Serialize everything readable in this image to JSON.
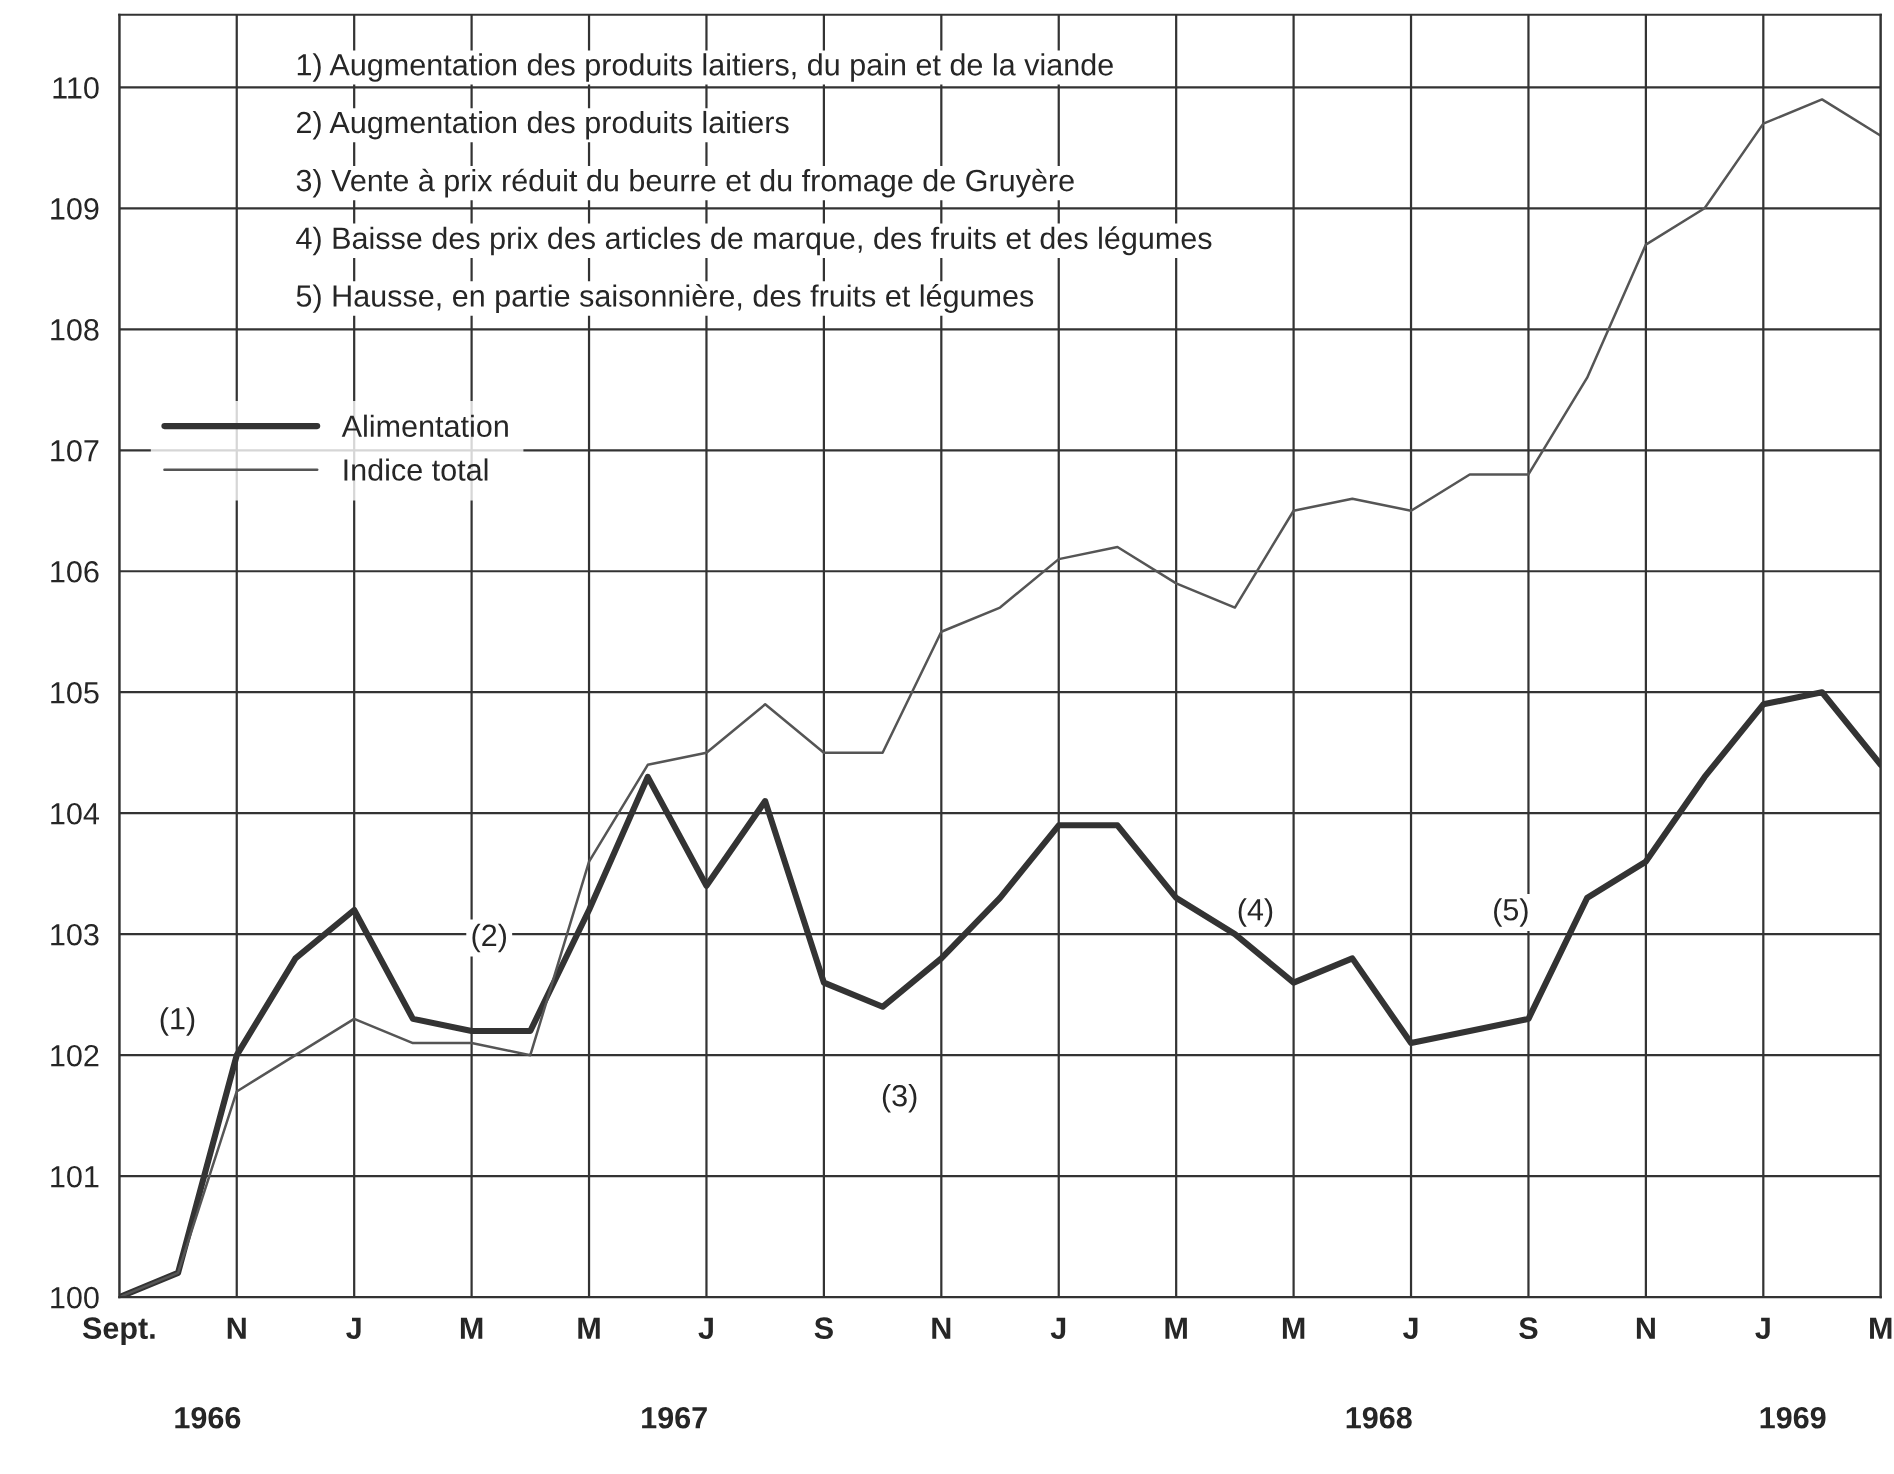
{
  "chart_data": {
    "type": "line",
    "categories": [
      "Sept.",
      null,
      "N",
      null,
      "J",
      null,
      "M",
      null,
      "M",
      null,
      "J",
      null,
      "S",
      null,
      "N",
      null,
      "J",
      null,
      "M",
      null,
      "M",
      null,
      "J",
      null,
      "S",
      null,
      "N",
      null,
      "J",
      null,
      "M"
    ],
    "series": [
      {
        "name": "Alimentation",
        "color": "#333333",
        "values": [
          100.0,
          100.2,
          102.0,
          102.8,
          103.2,
          102.3,
          102.2,
          102.2,
          103.2,
          104.3,
          103.4,
          104.1,
          102.6,
          102.4,
          102.8,
          103.3,
          103.9,
          103.9,
          103.3,
          103.0,
          102.6,
          102.8,
          102.1,
          102.2,
          102.3,
          103.3,
          103.6,
          104.3,
          104.9,
          105.0,
          104.4
        ]
      },
      {
        "name": "Indice total",
        "color": "#555555",
        "values": [
          100.0,
          100.2,
          101.7,
          102.0,
          102.3,
          102.1,
          102.1,
          102.0,
          103.6,
          104.4,
          104.5,
          104.9,
          104.5,
          104.5,
          105.5,
          105.7,
          106.1,
          106.2,
          105.9,
          105.7,
          106.5,
          106.6,
          106.5,
          106.8,
          106.8,
          107.6,
          108.7,
          109.0,
          109.7,
          109.9,
          109.6
        ]
      }
    ],
    "ylim": [
      100,
      110.6
    ],
    "yticks": [
      100,
      101,
      102,
      103,
      104,
      105,
      106,
      107,
      108,
      109,
      110
    ],
    "grid": true,
    "legend": "left",
    "annotations": [
      "1) Augmentation des produits laitiers, du pain et de la viande",
      "2) Augmentation des produits laitiers",
      "3) Vente à prix réduit du beurre et du fromage de Gruyère",
      "4) Baisse des prix des articles de marque, des fruits et des légumes",
      "5) Hausse, en partie saisonnière, des fruits et légumes",
      "(1)",
      "(2)",
      "(3)",
      "(4)",
      "(5)",
      "1966",
      "1967",
      "1968",
      "1969"
    ]
  }
}
